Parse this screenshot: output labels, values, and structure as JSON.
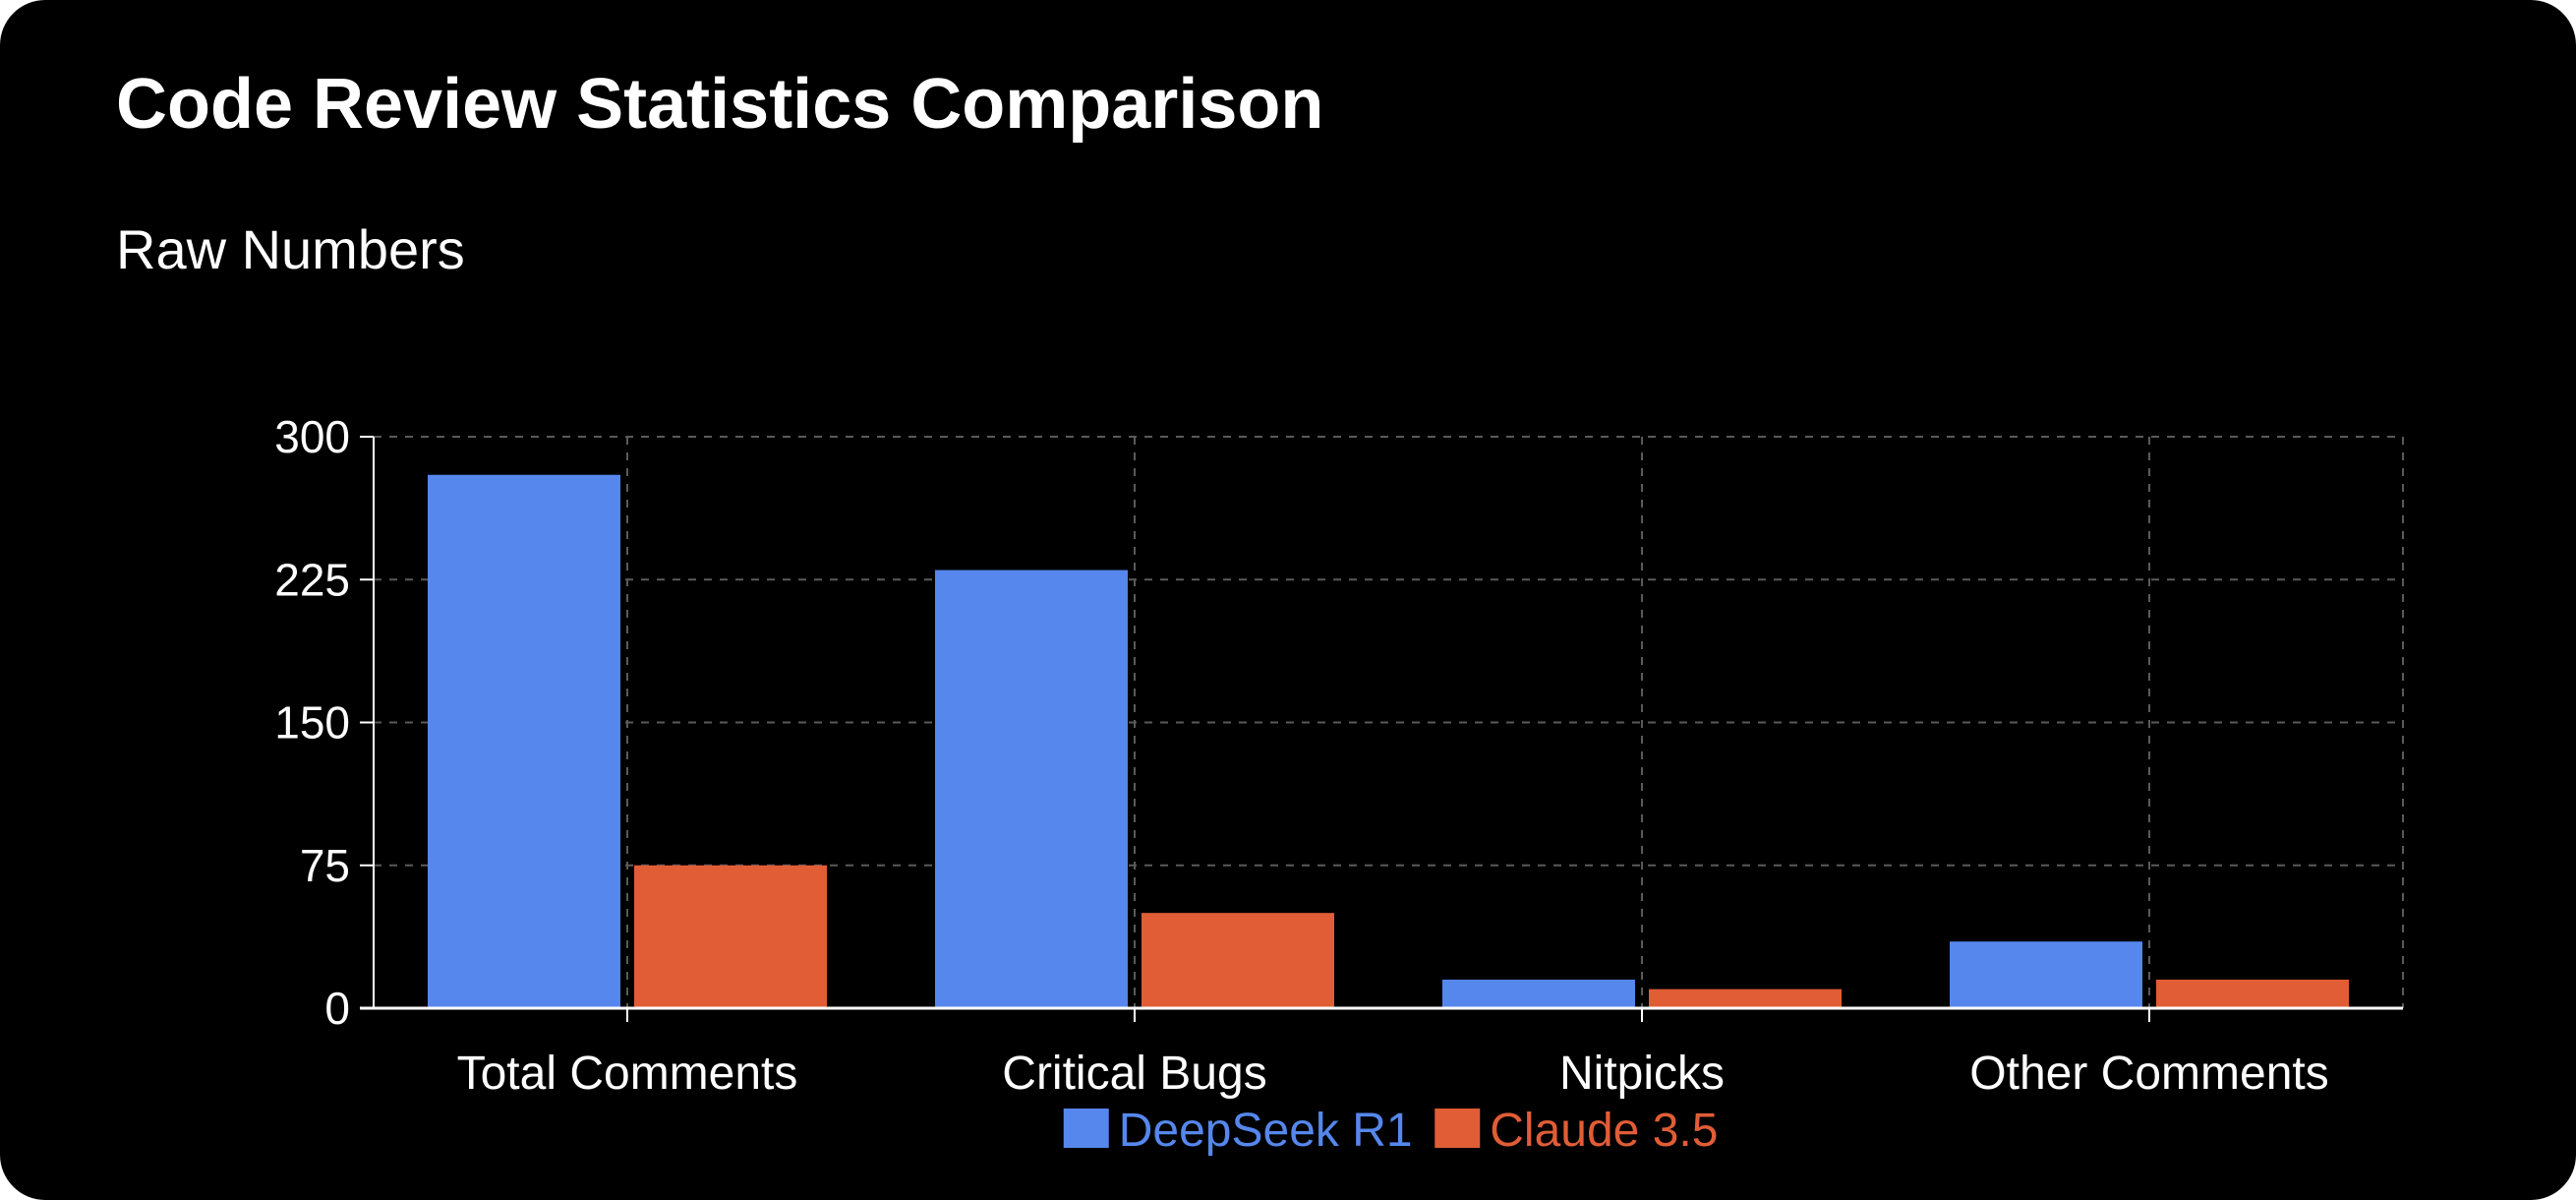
{
  "page": {
    "title": "Code Review Statistics Comparison"
  },
  "chart_data": {
    "type": "bar",
    "title": "Raw Numbers",
    "xlabel": "",
    "ylabel": "",
    "categories": [
      "Total Comments",
      "Critical Bugs",
      "Nitpicks",
      "Other Comments"
    ],
    "series": [
      {
        "name": "DeepSeek R1",
        "color": "#5587EC",
        "values": [
          280,
          230,
          15,
          35
        ]
      },
      {
        "name": "Claude 3.5",
        "color": "#E05D36",
        "values": [
          75,
          50,
          10,
          15
        ]
      }
    ],
    "ylim": [
      0,
      300
    ],
    "yticks": [
      0,
      75,
      150,
      225,
      300
    ],
    "grid": true,
    "grid_style": "dashed",
    "legend_position": "bottom-center",
    "background": "#000000",
    "text_color": "#ffffff"
  }
}
